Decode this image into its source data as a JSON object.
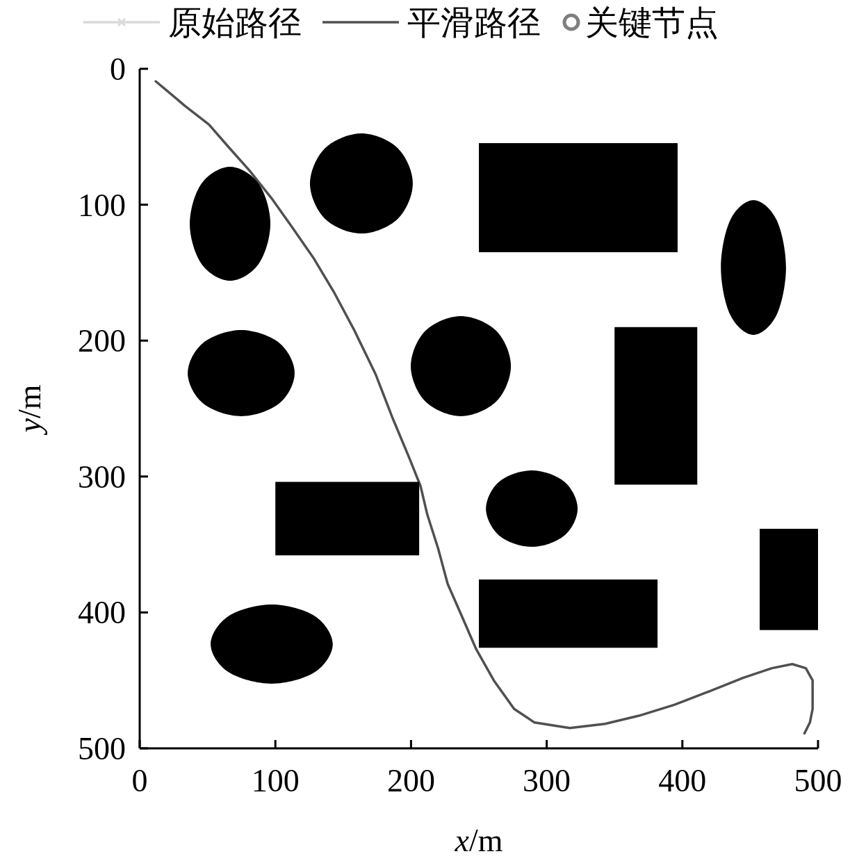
{
  "chart_data": {
    "type": "line",
    "xlabel": "x/m",
    "ylabel": "y/m",
    "xlim": [
      0,
      500
    ],
    "ylim": [
      500,
      0
    ],
    "xticks": [
      0,
      100,
      200,
      300,
      400,
      500
    ],
    "yticks": [
      0,
      100,
      200,
      300,
      400,
      500
    ],
    "grid": false,
    "legend": "top",
    "series": [
      {
        "name": "原始路径",
        "color": "#d9d9d9",
        "marker": "cross"
      },
      {
        "name": "平滑路径",
        "color": "#505050",
        "marker": "none",
        "x": [
          11.8,
          20,
          33,
          51,
          65,
          81,
          97,
          112,
          128,
          143,
          158,
          174,
          186,
          199,
          207,
          212,
          220,
          227,
          238,
          248,
          261,
          276,
          291,
          317,
          343,
          368,
          394,
          420,
          445,
          466,
          481,
          491,
          496,
          496,
          494,
          490
        ],
        "values": [
          9.2,
          16,
          27,
          41,
          57,
          75,
          95,
          116,
          139,
          164,
          192,
          225,
          256,
          287,
          307,
          328,
          353,
          379,
          404,
          427,
          450,
          471,
          481,
          485,
          482,
          476,
          468,
          458,
          448,
          441,
          438,
          441,
          450,
          471,
          481,
          489
        ]
      },
      {
        "name": "关键节点",
        "color": "#7f7f7f",
        "type": "scatter",
        "marker": "circle"
      },
      {
        "type": "area",
        "color": "#000000",
        "x": [
          96.3,
          87.6,
          66.6,
          45.6,
          36.9,
          45.6,
          66.6,
          87.6
        ],
        "values": [
          114,
          143.6,
          155.9,
          143.6,
          114,
          84.4,
          72.1,
          84.4
        ]
      },
      {
        "type": "area",
        "color": "#000000",
        "x": [
          201.3,
          190.2,
          163.4,
          136.6,
          125.5,
          136.6,
          163.4,
          190.2
        ],
        "values": [
          84.4,
          110.4,
          121.2,
          110.4,
          84.4,
          58.4,
          47.6,
          58.4
        ]
      },
      {
        "type": "area",
        "color": "#000000",
        "x": [
          250,
          396.5,
          396.5,
          250
        ],
        "values": [
          54.7,
          54.7,
          135,
          135
        ]
      },
      {
        "type": "area",
        "color": "#000000",
        "x": [
          476.4,
          469.4,
          452.4,
          435.4,
          428.4,
          435.4,
          452.4,
          469.4
        ],
        "values": [
          146.2,
          181.3,
          195.8,
          181.3,
          146.2,
          111.1,
          96.6,
          111.1
        ]
      },
      {
        "type": "area",
        "color": "#000000",
        "x": [
          114.2,
          102.7,
          74.8,
          46.9,
          35.4,
          46.9,
          74.8,
          102.7
        ],
        "values": [
          223.9,
          246.3,
          255.6,
          246.3,
          223.9,
          201.5,
          192.2,
          201.5
        ]
      },
      {
        "type": "area",
        "color": "#000000",
        "x": [
          273.6,
          262.8,
          236.7,
          210.6,
          199.8,
          210.6,
          236.7,
          262.8
        ],
        "values": [
          218.8,
          244.8,
          255.6,
          244.8,
          218.8,
          192.8,
          182,
          192.8
        ]
      },
      {
        "type": "area",
        "color": "#000000",
        "x": [
          350,
          411,
          411,
          350
        ],
        "values": [
          190,
          190,
          306,
          306
        ]
      },
      {
        "type": "area",
        "color": "#000000",
        "x": [
          100,
          206,
          206,
          100
        ],
        "values": [
          304,
          304,
          358,
          358
        ]
      },
      {
        "type": "area",
        "color": "#000000",
        "x": [
          322.8,
          312.9,
          289,
          265.1,
          255.2,
          265.1,
          289,
          312.9
        ],
        "values": [
          323.6,
          343.5,
          351.7,
          343.5,
          323.6,
          303.7,
          295.5,
          303.7
        ]
      },
      {
        "type": "area",
        "color": "#000000",
        "x": [
          250,
          381.7,
          381.7,
          250
        ],
        "values": [
          375.8,
          375.8,
          426,
          426
        ]
      },
      {
        "type": "area",
        "color": "#000000",
        "x": [
          457,
          500,
          500,
          457
        ],
        "values": [
          338.5,
          338.5,
          413,
          413
        ]
      },
      {
        "type": "area",
        "color": "#000000",
        "x": [
          142.3,
          129.1,
          97.3,
          65.5,
          52.3,
          65.5,
          97.3,
          129.1
        ],
        "values": [
          423.3,
          443.9,
          452.4,
          443.9,
          423.3,
          402.7,
          394.2,
          402.7
        ]
      }
    ]
  }
}
